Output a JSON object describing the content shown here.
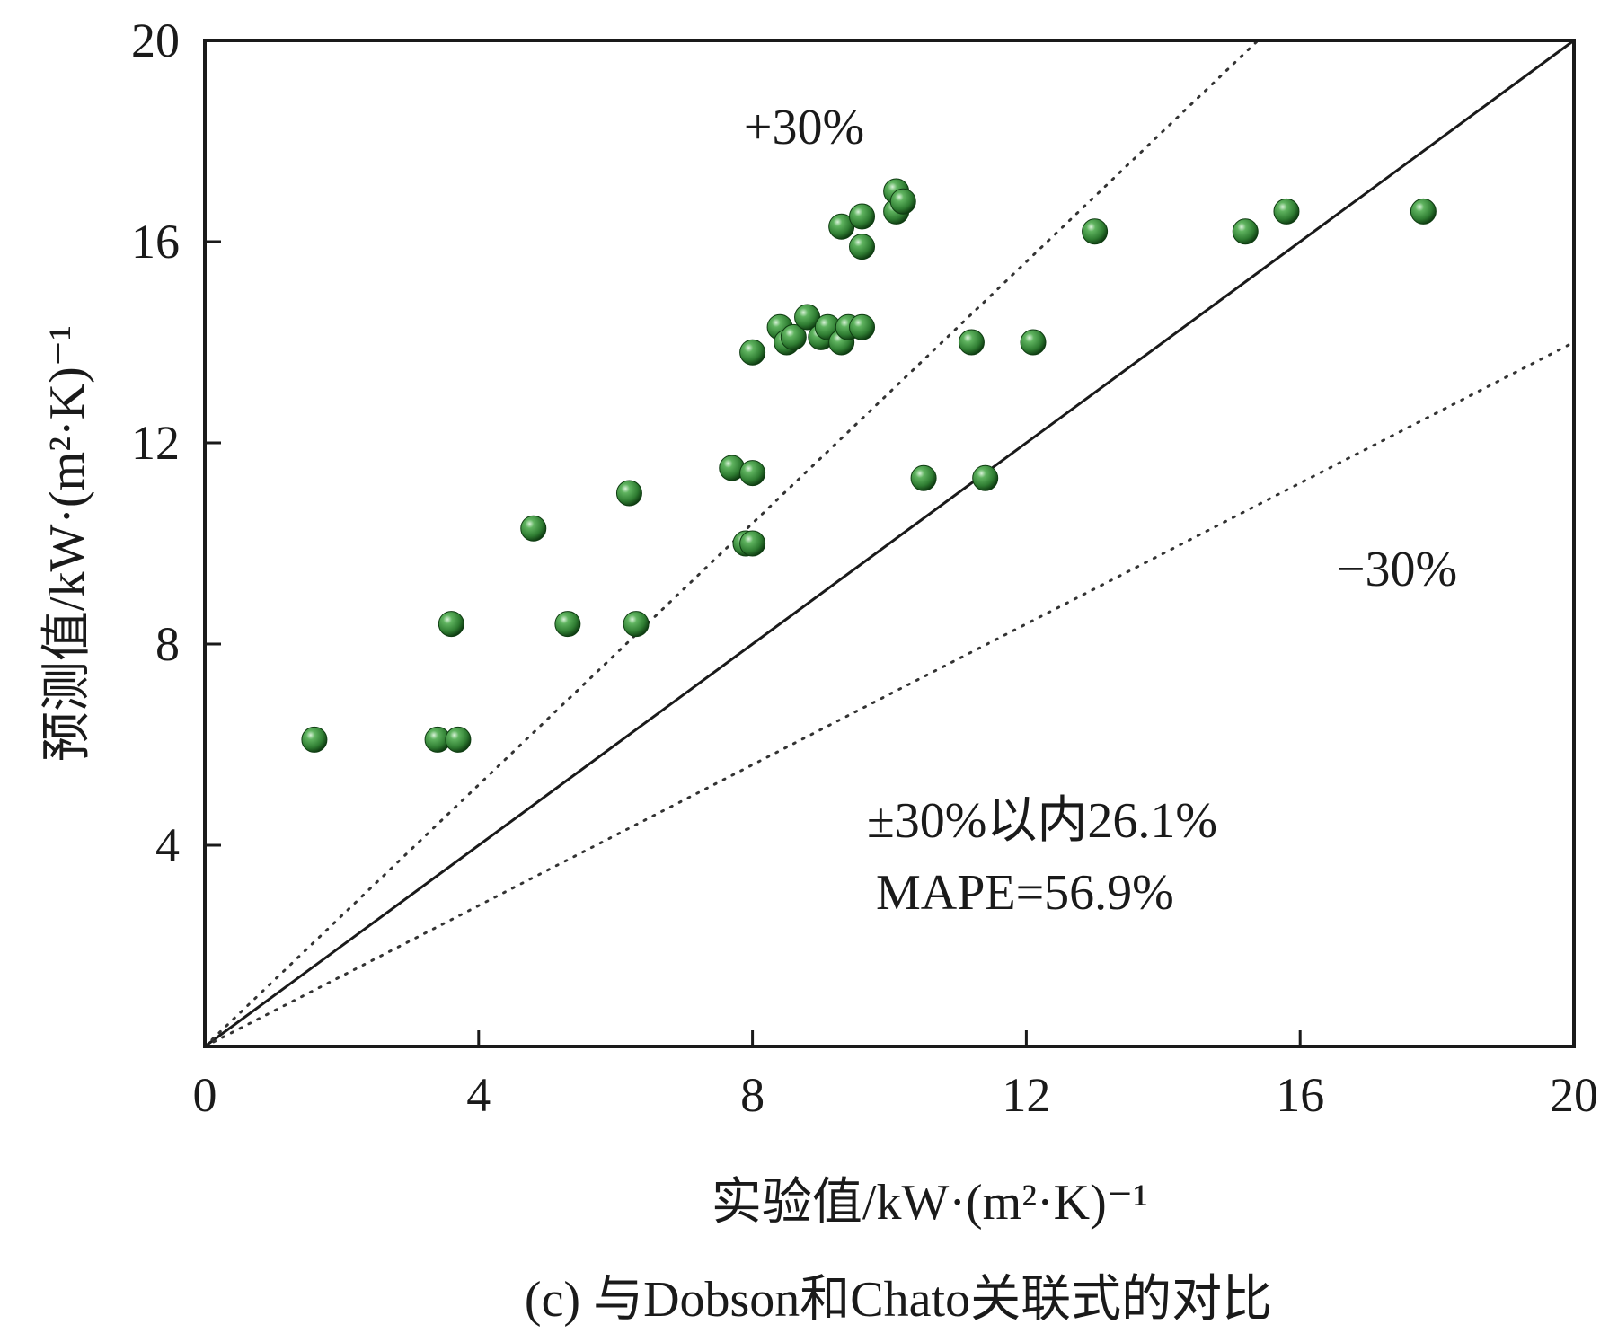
{
  "chart_data": {
    "type": "scatter",
    "title": "",
    "caption": "(c) 与Dobson和Chato关联式的对比",
    "xlabel": "实验值/kW·(m²·K)⁻¹",
    "ylabel": "预测值/kW·(m²·K)⁻¹",
    "xlim": [
      0,
      20
    ],
    "ylim": [
      0,
      20
    ],
    "xticks": [
      "0",
      "4",
      "8",
      "12",
      "16",
      "20"
    ],
    "yticks": [
      "4",
      "8",
      "12",
      "16",
      "20"
    ],
    "grid": false,
    "marker_color": "#2f7d32",
    "reference_lines": [
      {
        "label": "",
        "slope": 1.0,
        "style": "solid"
      },
      {
        "label": "+30%",
        "slope": 1.3,
        "style": "dotted"
      },
      {
        "label": "−30%",
        "slope": 0.7,
        "style": "dotted"
      }
    ],
    "annotations": [
      "±30%以内26.1%",
      "MAPE=56.9%"
    ],
    "points": [
      {
        "x": 1.6,
        "y": 6.1
      },
      {
        "x": 3.4,
        "y": 6.1
      },
      {
        "x": 3.7,
        "y": 6.1
      },
      {
        "x": 3.6,
        "y": 8.4
      },
      {
        "x": 4.8,
        "y": 10.3
      },
      {
        "x": 5.3,
        "y": 8.4
      },
      {
        "x": 6.2,
        "y": 11.0
      },
      {
        "x": 6.3,
        "y": 8.4
      },
      {
        "x": 7.7,
        "y": 11.5
      },
      {
        "x": 7.9,
        "y": 10.0
      },
      {
        "x": 8.0,
        "y": 10.0
      },
      {
        "x": 8.0,
        "y": 11.4
      },
      {
        "x": 8.0,
        "y": 13.8
      },
      {
        "x": 8.4,
        "y": 14.3
      },
      {
        "x": 8.5,
        "y": 14.0
      },
      {
        "x": 8.6,
        "y": 14.1
      },
      {
        "x": 8.8,
        "y": 14.5
      },
      {
        "x": 9.0,
        "y": 14.1
      },
      {
        "x": 9.1,
        "y": 14.3
      },
      {
        "x": 9.3,
        "y": 14.0
      },
      {
        "x": 9.3,
        "y": 16.3
      },
      {
        "x": 9.4,
        "y": 14.3
      },
      {
        "x": 9.6,
        "y": 16.5
      },
      {
        "x": 9.6,
        "y": 15.9
      },
      {
        "x": 9.6,
        "y": 14.3
      },
      {
        "x": 10.1,
        "y": 16.6
      },
      {
        "x": 10.1,
        "y": 17.0
      },
      {
        "x": 10.2,
        "y": 16.8
      },
      {
        "x": 10.5,
        "y": 11.3
      },
      {
        "x": 11.2,
        "y": 14.0
      },
      {
        "x": 11.4,
        "y": 11.3
      },
      {
        "x": 12.1,
        "y": 14.0
      },
      {
        "x": 13.0,
        "y": 16.2
      },
      {
        "x": 15.2,
        "y": 16.2
      },
      {
        "x": 15.8,
        "y": 16.6
      },
      {
        "x": 17.8,
        "y": 16.6
      }
    ]
  }
}
